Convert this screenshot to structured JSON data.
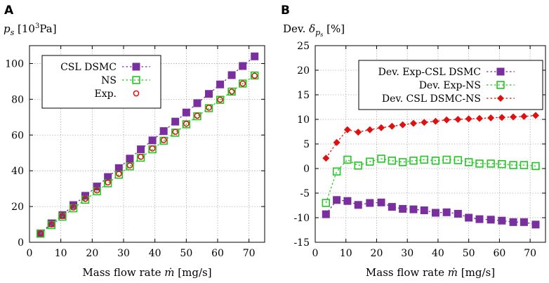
{
  "chart_data": [
    {
      "panel_label": "A",
      "type": "line",
      "title": "",
      "ylabel_parts": {
        "sym": "p",
        "sub": "s",
        "pre": "[10",
        "sup": "3",
        "post": "Pa]"
      },
      "xlabel_parts": {
        "pre": "Mass flow rate ",
        "sym": "ṁ",
        "post": " [mg/s]"
      },
      "xlim": [
        0,
        75
      ],
      "ylim": [
        0,
        110
      ],
      "xticks": [
        0,
        10,
        20,
        30,
        40,
        50,
        60,
        70
      ],
      "yticks": [
        0,
        20,
        40,
        60,
        80,
        100
      ],
      "grid": true,
      "legend_position": "top-left",
      "x": [
        3.5,
        7,
        10.5,
        14,
        17.8,
        21.5,
        25,
        28.5,
        32,
        35.5,
        39.2,
        42.8,
        46.5,
        50,
        53.5,
        57.2,
        60.8,
        64.5,
        68,
        71.8
      ],
      "series": [
        {
          "name": "CSL DSMC",
          "color": "#7a2f9e",
          "marker": "filled-square",
          "line": "dotted",
          "values": [
            5,
            10.6,
            15.2,
            20.8,
            26,
            31.2,
            36.5,
            41.5,
            46.8,
            52,
            57,
            62.2,
            67.5,
            72.6,
            77.8,
            83,
            88.3,
            93.5,
            98.6,
            104
          ]
        },
        {
          "name": "NS",
          "color": "#1ec81e",
          "marker": "open-square",
          "line": "dotted",
          "values": [
            4.8,
            9.6,
            14.3,
            19,
            23.8,
            28.5,
            33,
            37.8,
            42.5,
            47.3,
            52,
            56.8,
            61.3,
            66,
            70.5,
            75,
            79.7,
            84.3,
            88.8,
            93.3
          ]
        },
        {
          "name": "Exp.",
          "color": "#e01010",
          "marker": "open-circle",
          "line": "none",
          "values": [
            5,
            10,
            14.8,
            19.5,
            24.3,
            29,
            33.5,
            38.3,
            43,
            47.8,
            52.5,
            57.2,
            61.8,
            66.3,
            70.8,
            75.3,
            79.8,
            84.3,
            88.8,
            93.2
          ]
        }
      ]
    },
    {
      "panel_label": "B",
      "type": "line",
      "title": "",
      "ylabel_parts": {
        "pre": "Dev. ",
        "sym": "δ",
        "sub": "p",
        "subsub": "s",
        "post": " [%]"
      },
      "xlabel_parts": {
        "pre": "Mass flow rate ",
        "sym": "ṁ",
        "post": " [mg/s]"
      },
      "xlim": [
        0,
        75
      ],
      "ylim": [
        -15,
        25
      ],
      "xticks": [
        0,
        10,
        20,
        30,
        40,
        50,
        60,
        70
      ],
      "yticks": [
        -15,
        -10,
        -5,
        0,
        5,
        10,
        15,
        20,
        25
      ],
      "grid": true,
      "legend_position": "top-right",
      "x": [
        3.5,
        7,
        10.5,
        14,
        17.8,
        21.5,
        25,
        28.5,
        32,
        35.5,
        39.2,
        42.8,
        46.5,
        50,
        53.5,
        57.2,
        60.8,
        64.5,
        68,
        71.8
      ],
      "series": [
        {
          "name": "Dev. Exp-CSL DSMC",
          "color": "#7a2f9e",
          "marker": "filled-square",
          "line": "dotted",
          "values": [
            -9.3,
            -6.4,
            -6.6,
            -7.4,
            -7,
            -6.9,
            -7.8,
            -8.2,
            -8.3,
            -8.5,
            -9,
            -8.9,
            -9.2,
            -10,
            -10.3,
            -10.4,
            -10.6,
            -10.9,
            -10.9,
            -11.4
          ]
        },
        {
          "name": "Dev. Exp-NS",
          "color": "#1ec81e",
          "marker": "open-square",
          "line": "dotted",
          "values": [
            -7,
            -0.6,
            1.8,
            0.6,
            1.4,
            2,
            1.6,
            1.3,
            1.6,
            1.8,
            1.6,
            1.8,
            1.7,
            1.3,
            1,
            1,
            0.9,
            0.7,
            0.7,
            0.5
          ]
        },
        {
          "name": "Dev. CSL DSMC-NS",
          "color": "#e01010",
          "marker": "filled-diamond",
          "line": "dotted",
          "values": [
            2.1,
            5.3,
            7.9,
            7.4,
            7.9,
            8.3,
            8.6,
            8.9,
            9.2,
            9.4,
            9.6,
            9.9,
            10,
            10.1,
            10.2,
            10.3,
            10.4,
            10.5,
            10.6,
            10.8
          ]
        }
      ]
    }
  ]
}
